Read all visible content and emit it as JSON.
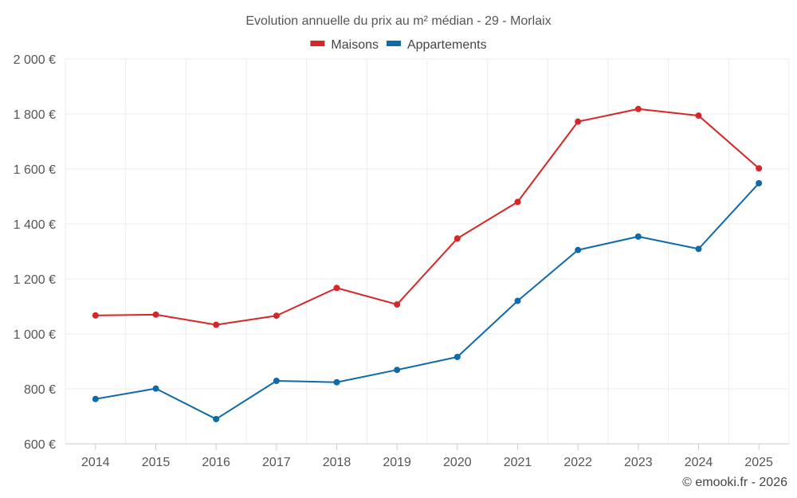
{
  "chart_data": {
    "type": "line",
    "title": "Evolution annuelle du prix au m² médian - 29 - Morlaix",
    "categories": [
      "2014",
      "2015",
      "2016",
      "2017",
      "2018",
      "2019",
      "2020",
      "2021",
      "2022",
      "2023",
      "2024",
      "2025"
    ],
    "series": [
      {
        "name": "Maisons",
        "color": "#d62728",
        "values": [
          1067,
          1070,
          1033,
          1066,
          1167,
          1107,
          1347,
          1480,
          1772,
          1818,
          1794,
          1602
        ]
      },
      {
        "name": "Appartements",
        "color": "#0e6aa8",
        "values": [
          763,
          801,
          690,
          829,
          824,
          869,
          916,
          1120,
          1305,
          1354,
          1309,
          1548
        ]
      }
    ],
    "ylim": [
      600,
      2000
    ],
    "yticks": [
      600,
      800,
      1000,
      1200,
      1400,
      1600,
      1800,
      2000
    ],
    "ytick_labels": [
      "600 €",
      "800 €",
      "1 000 €",
      "1 200 €",
      "1 400 €",
      "1 600 €",
      "1 800 €",
      "2 000 €"
    ],
    "xlabel": "",
    "ylabel": "",
    "grid": true,
    "legend_position": "top-center"
  },
  "credit": "© emooki.fr - 2026"
}
